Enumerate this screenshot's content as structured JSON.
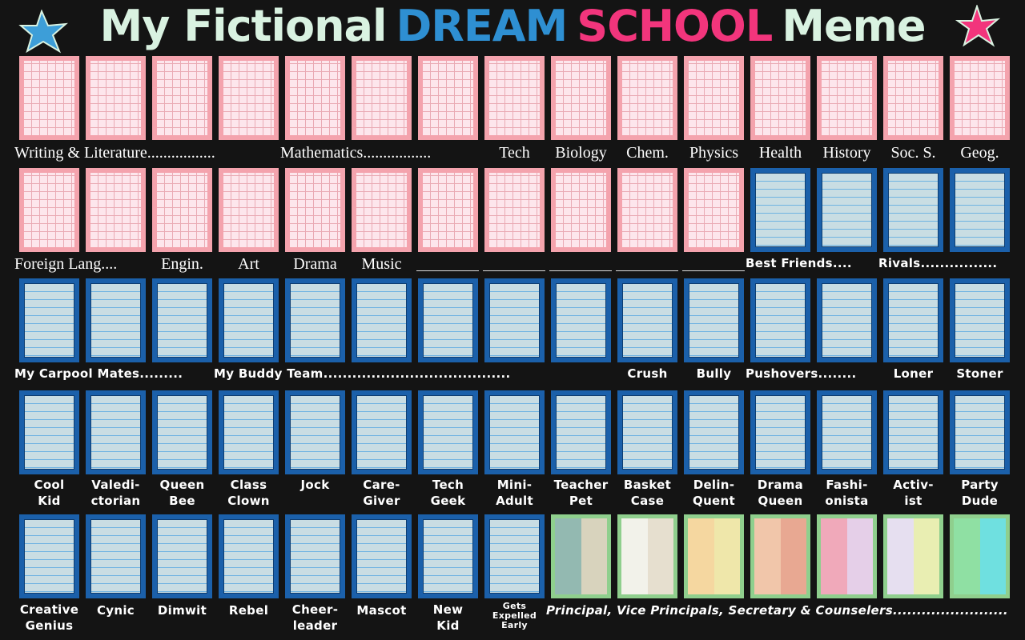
{
  "title": {
    "part1": "My Fictional",
    "part2": "DREAM",
    "part3": "SCHOOL",
    "part4": "Meme"
  },
  "rows": [
    {
      "labels": [
        [
          "Writing & Literature................."
        ],
        [
          "Mathematics................."
        ],
        [
          "Tech"
        ],
        [
          "Biology"
        ],
        [
          "Chem."
        ],
        [
          "Physics"
        ],
        [
          "Health"
        ],
        [
          "History"
        ],
        [
          "Soc. S."
        ],
        [
          "Geog."
        ]
      ]
    },
    {
      "labels": [
        [
          "Foreign Lang...."
        ],
        [
          "Engin."
        ],
        [
          "Art"
        ],
        [
          "Drama"
        ],
        [
          "Music"
        ],
        [
          "Best Friends...."
        ],
        [
          "Rivals................"
        ]
      ]
    },
    {
      "labels": [
        [
          "My Carpool Mates........."
        ],
        [
          "My Buddy Team......................................."
        ],
        [
          "Crush"
        ],
        [
          "Bully"
        ],
        [
          "Pushovers........"
        ],
        [
          "Loner"
        ],
        [
          "Stoner"
        ]
      ]
    },
    {
      "labels": [
        [
          "Cool",
          "Kid"
        ],
        [
          "Valedi-",
          "ctorian"
        ],
        [
          "Queen",
          "Bee"
        ],
        [
          "Class",
          "Clown"
        ],
        [
          "Jock"
        ],
        [
          "Care-",
          "Giver"
        ],
        [
          "Tech",
          "Geek"
        ],
        [
          "Mini-",
          "Adult"
        ],
        [
          "Teacher",
          "Pet"
        ],
        [
          "Basket",
          "Case"
        ],
        [
          "Delin-",
          "Quent"
        ],
        [
          "Drama",
          "Queen"
        ],
        [
          "Fashi-",
          "onista"
        ],
        [
          "Activ-",
          "ist"
        ],
        [
          "Party",
          "Dude"
        ]
      ]
    },
    {
      "labels": [
        [
          "Creative",
          "Genius"
        ],
        [
          "Cynic"
        ],
        [
          "Dimwit"
        ],
        [
          "Rebel"
        ],
        [
          "Cheer-",
          "leader"
        ],
        [
          "Mascot"
        ],
        [
          "New",
          "Kid"
        ],
        [
          "Gets",
          "Expelled",
          "Early"
        ],
        [
          "Principal, Vice Principals, Secretary & Counselers........................"
        ]
      ]
    }
  ]
}
